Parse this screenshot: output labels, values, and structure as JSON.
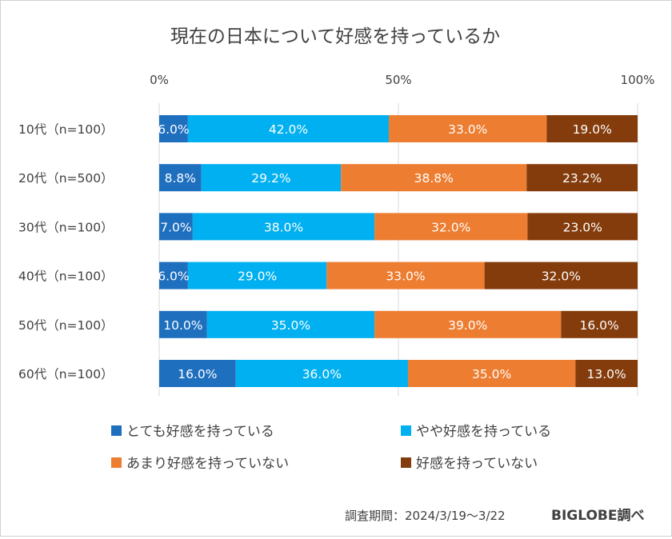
{
  "chart_data": {
    "type": "bar",
    "orientation": "horizontal",
    "stacked": true,
    "percent_scale": true,
    "title": "現在の日本について好感を持っているか",
    "xlim": [
      0,
      100
    ],
    "xticks": [
      {
        "value": 0,
        "label": "0%"
      },
      {
        "value": 50,
        "label": "50%"
      },
      {
        "value": 100,
        "label": "100%"
      }
    ],
    "grid": true,
    "legend_position": "bottom",
    "categories": [
      "10代（n=100）",
      "20代（n=500）",
      "30代（n=100）",
      "40代（n=100）",
      "50代（n=100）",
      "60代（n=100）"
    ],
    "series": [
      {
        "name": "とても好感を持っている",
        "color": "#1F6FBF",
        "values": [
          6.0,
          8.8,
          7.0,
          6.0,
          10.0,
          16.0
        ],
        "labels": [
          "6.0%",
          "8.8%",
          "7.0%",
          "6.0%",
          "10.0%",
          "16.0%"
        ]
      },
      {
        "name": "やや好感を持っている",
        "color": "#00B0F0",
        "values": [
          42.0,
          29.2,
          38.0,
          29.0,
          35.0,
          36.0
        ],
        "labels": [
          "42.0%",
          "29.2%",
          "38.0%",
          "29.0%",
          "35.0%",
          "36.0%"
        ]
      },
      {
        "name": "あまり好感を持っていない",
        "color": "#ED7D31",
        "values": [
          33.0,
          38.8,
          32.0,
          33.0,
          39.0,
          35.0
        ],
        "labels": [
          "33.0%",
          "38.8%",
          "32.0%",
          "33.0%",
          "39.0%",
          "35.0%"
        ]
      },
      {
        "name": "好感を持っていない",
        "color": "#843C0C",
        "values": [
          19.0,
          23.2,
          23.0,
          32.0,
          16.0,
          13.0
        ],
        "labels": [
          "19.0%",
          "23.2%",
          "23.0%",
          "32.0%",
          "16.0%",
          "13.0%"
        ]
      }
    ]
  },
  "footer": {
    "survey_period": "調査期間：2024/3/19～3/22",
    "source": "BIGLOBE調べ"
  }
}
